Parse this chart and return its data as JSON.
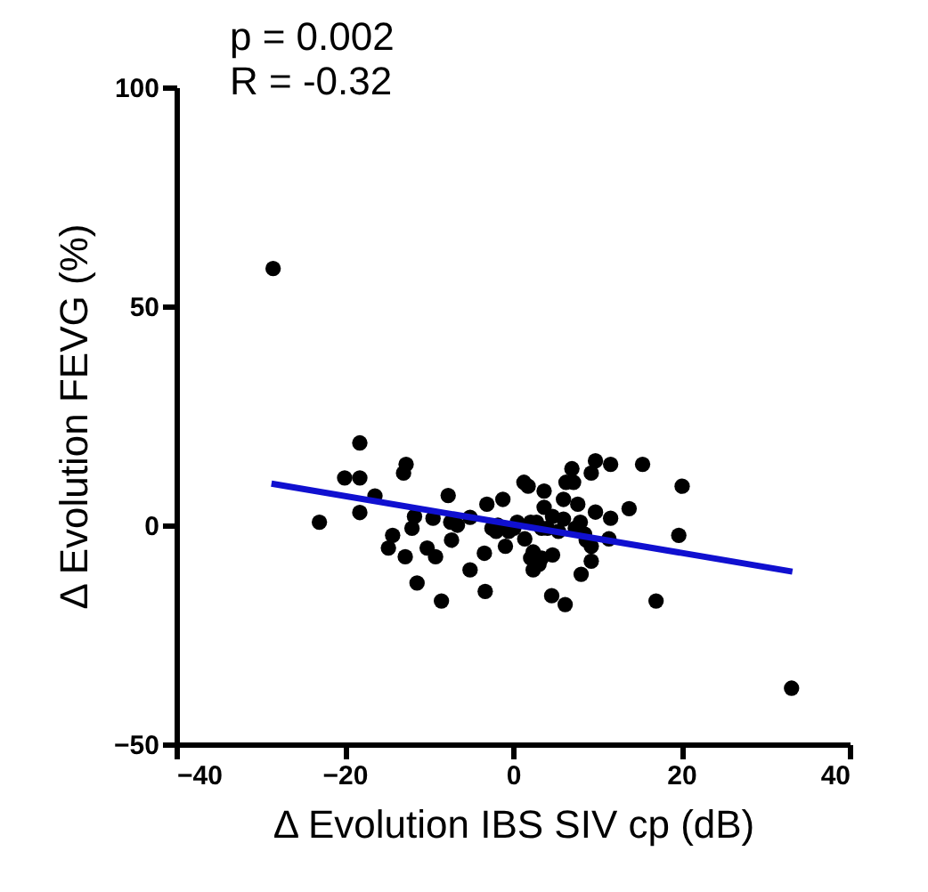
{
  "chart_data": {
    "type": "scatter",
    "xlabel": "Δ Evolution IBS SIV cp (dB)",
    "ylabel": "Δ Evolution FEVG (%)",
    "annotations": [
      "p = 0.002",
      "R = -0.32"
    ],
    "xlim": [
      -40,
      40
    ],
    "xticks": [
      -40,
      -20,
      0,
      20,
      40
    ],
    "ylim": [
      -50,
      100
    ],
    "yticks": [
      -50,
      0,
      50,
      100
    ],
    "grid": false,
    "series": [
      {
        "color": "#000000",
        "x": [
          -28.5,
          -18.2,
          -20,
          -18.2,
          -16.4,
          -23,
          -18.2,
          -12.7,
          -13,
          -11.7,
          -12,
          -14.3,
          -14.8,
          -12.8,
          -11.4,
          -10.2,
          -9.2,
          -9.5,
          -7.7,
          -8.5,
          -7.3,
          -7.4,
          -6.6,
          -5.1,
          -5.1,
          -3.4,
          -3.3,
          -3.1,
          -1.2,
          -1.8,
          -2,
          -0.9,
          -0.5,
          0.5,
          1.3,
          1.8,
          1.4,
          2.1,
          2.4,
          2.4,
          3.7,
          3.7,
          4.1,
          3.4,
          4.6,
          4.7,
          6,
          6,
          6.2,
          6.3,
          7,
          7.2,
          7.7,
          8,
          8.5,
          9.3,
          9.3,
          8.1,
          9.3,
          9.8,
          9.8,
          11.4,
          11.6,
          11.6,
          13.8,
          15.4,
          17,
          20.1,
          19.7,
          33.1,
          -2.5,
          0.1,
          2.8,
          3.4,
          4.7,
          5.4,
          2.1,
          3.1,
          7.4,
          8.7
        ],
        "values": [
          58.6,
          18.8,
          10.8,
          10.8,
          6.7,
          0.7,
          2.9,
          13.9,
          11.9,
          2,
          -0.7,
          -2.3,
          -5.2,
          -7.2,
          -13.2,
          -5.2,
          -7.2,
          1.6,
          6.8,
          -17.3,
          -3.4,
          0.7,
          0,
          1.8,
          -10.2,
          -6.4,
          -15.1,
          4.8,
          5.9,
          0,
          -1.4,
          -4.8,
          -1.4,
          0.7,
          9.8,
          8.9,
          -3.1,
          0.7,
          -6.1,
          -10.2,
          7.8,
          4.1,
          -0.7,
          -7.5,
          -16.1,
          -6.8,
          5.9,
          1.4,
          -18.1,
          9.8,
          12.9,
          9.8,
          4.8,
          0.7,
          -2,
          -4.8,
          -8.2,
          -11.2,
          11.9,
          14.7,
          3,
          -3.1,
          1.6,
          13.9,
          3.8,
          13.9,
          -17.3,
          8.9,
          -2.3,
          -37.2,
          -0.7,
          -0.7,
          0.7,
          -0.7,
          2,
          -1.4,
          -7.5,
          -8.9,
          -0.7,
          -3.4
        ]
      },
      {
        "type": "line",
        "color": "#1010d0",
        "x": [
          -28.7,
          33.2
        ],
        "values": [
          9.5,
          -10.6
        ]
      }
    ]
  }
}
